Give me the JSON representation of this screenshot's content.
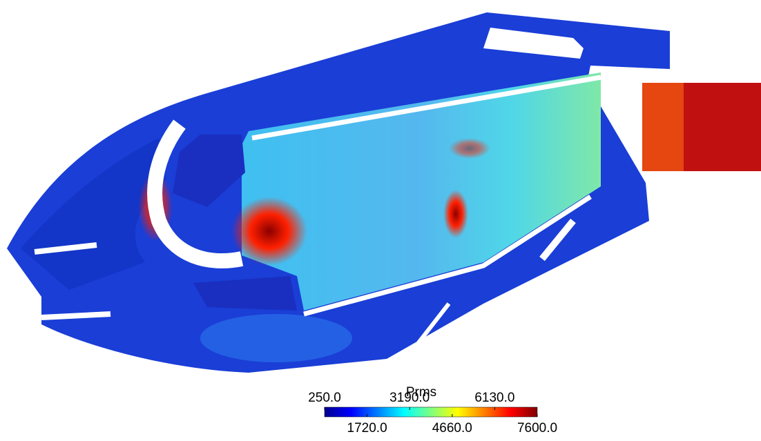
{
  "colorbar": {
    "title": "Prms",
    "range": [
      250,
      7600
    ],
    "ticks": [
      {
        "value": 250,
        "label": "250.0"
      },
      {
        "value": 1720,
        "label": "1720.0"
      },
      {
        "value": 3190,
        "label": "3190.0"
      },
      {
        "value": 4660,
        "label": "4660.0"
      },
      {
        "value": 6130,
        "label": "6130.0"
      },
      {
        "value": 7600,
        "label": "7600.0"
      }
    ]
  }
}
